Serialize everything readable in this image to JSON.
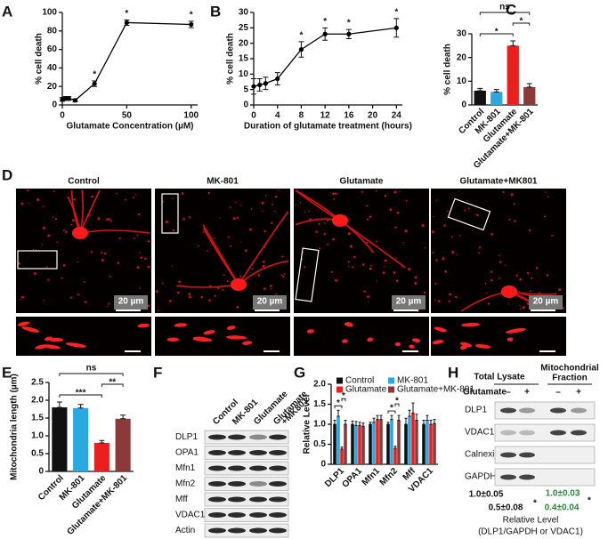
{
  "chart_data": [
    {
      "type": "line",
      "label": "A",
      "x_label": "Glutamate Concentration (µM)",
      "y_label": "% cell death",
      "x": [
        0,
        2.5,
        5,
        10,
        25,
        50,
        100
      ],
      "values": [
        6,
        7,
        7,
        5,
        23,
        89,
        87
      ],
      "errors": [
        2,
        2,
        2,
        1.5,
        3,
        3,
        3.5
      ],
      "significance": [
        null,
        null,
        null,
        null,
        "*",
        "*",
        "*"
      ],
      "color": "#000000",
      "xlim": [
        0,
        105
      ],
      "xticks": [
        0,
        50,
        100
      ],
      "ylim": [
        0,
        100
      ],
      "yticks": [
        0,
        20,
        40,
        60,
        80,
        100
      ]
    },
    {
      "type": "line",
      "label": "B",
      "x_label": "Duration of glutamate treatment (hours)",
      "y_label": "% cell death",
      "x": [
        0,
        1,
        2,
        4,
        8,
        12,
        16,
        24
      ],
      "values": [
        6,
        6.5,
        7,
        8.5,
        18,
        23,
        23,
        25
      ],
      "errors": [
        2.5,
        2,
        2,
        2,
        2.5,
        2,
        1.5,
        3
      ],
      "significance": [
        null,
        null,
        null,
        null,
        "*",
        "*",
        "*",
        "*"
      ],
      "color": "#000000",
      "xlim": [
        0,
        25
      ],
      "xticks": [
        0,
        4,
        8,
        12,
        16,
        20,
        24
      ],
      "ylim": [
        0,
        30
      ],
      "yticks": [
        0,
        5,
        10,
        15,
        20,
        25,
        30
      ]
    },
    {
      "type": "bar",
      "label": "C",
      "y_label": "% cell death",
      "categories": [
        "Control",
        "MK-801",
        "Glutamate",
        "Glutamate+MK-801"
      ],
      "values": [
        6,
        5.5,
        25,
        7.5
      ],
      "errors": [
        1,
        1,
        2,
        1.5
      ],
      "colors": [
        "#111111",
        "#29a9e0",
        "#e8211f",
        "#8b3a3a"
      ],
      "ylim": [
        0,
        30
      ],
      "yticks": [
        0,
        10,
        20,
        30
      ],
      "comparisons": [
        {
          "between": [
            "Control",
            "Glutamate"
          ],
          "text": "*"
        },
        {
          "between": [
            "Glutamate",
            "Glutamate+MK-801"
          ],
          "text": "*"
        },
        {
          "between": [
            "Control",
            "Glutamate+MK-801"
          ],
          "text": "ns"
        }
      ]
    },
    {
      "type": "bar",
      "label": "E",
      "y_label": "Mitochondria length (µm)",
      "categories": [
        "Control",
        "MK-801",
        "Glutamate",
        "Glutamate+MK-801"
      ],
      "values": [
        1.8,
        1.78,
        0.8,
        1.48
      ],
      "errors": [
        0.15,
        0.1,
        0.07,
        0.1
      ],
      "colors": [
        "#111111",
        "#29a9e0",
        "#e8211f",
        "#8b3a3a"
      ],
      "ylim": [
        0,
        2.5
      ],
      "yticks": [
        0,
        0.5,
        {
          "value": 1,
          "label": "1.0"
        },
        1.5,
        {
          "value": 2,
          "label": "2.0"
        },
        2.5
      ],
      "comparisons": [
        {
          "between": [
            "Control",
            "Glutamate"
          ],
          "text": "***"
        },
        {
          "between": [
            "Glutamate",
            "Glutamate+MK-801"
          ],
          "text": "**"
        },
        {
          "between": [
            "Control",
            "Glutamate+MK-801"
          ],
          "text": "ns"
        }
      ]
    },
    {
      "type": "grouped_bar",
      "label": "G",
      "y_label": "Relative Level",
      "legend": "top",
      "categories": [
        "DLP1",
        "OPA1",
        "Mfn1",
        "Mfn2",
        "Mff",
        "VDAC1"
      ],
      "series": [
        {
          "name": "Control",
          "color": "#111111",
          "values": [
            1,
            1,
            1,
            1,
            1,
            1
          ],
          "errors": [
            0.1,
            0.08,
            0.05,
            0.05,
            0.15,
            0.1
          ]
        },
        {
          "name": "MK-801",
          "color": "#29a9e0",
          "values": [
            1.2,
            0.97,
            1.05,
            1.12,
            1.2,
            1.1
          ],
          "errors": [
            0.15,
            0.1,
            0.1,
            0.1,
            0.15,
            0.12
          ]
        },
        {
          "name": "Glutamate",
          "color": "#e8211f",
          "values": [
            0.38,
            0.97,
            1.12,
            0.4,
            1.28,
            1.0
          ],
          "errors": [
            0.05,
            0.08,
            0.1,
            0.05,
            0.25,
            0.1
          ]
        },
        {
          "name": "Glutamate+MK-801",
          "color": "#8b3a3a",
          "values": [
            1.0,
            0.95,
            1.12,
            1.1,
            1.1,
            1.02
          ],
          "errors": [
            0.1,
            0.08,
            0.1,
            0.12,
            0.15,
            0.1
          ]
        }
      ],
      "ylim": [
        0,
        2
      ],
      "yticks": [
        0,
        0.5,
        {
          "value": 1,
          "label": "1.0"
        },
        1.5,
        {
          "value": 2,
          "label": "2.0"
        }
      ],
      "comparisons": [
        {
          "category": "DLP1",
          "between": [
            "Control",
            "Glutamate"
          ],
          "text": "*"
        },
        {
          "category": "DLP1",
          "between": [
            "Glutamate",
            "Glutamate+MK-801"
          ],
          "text": "*"
        },
        {
          "category": "Mfn2",
          "between": [
            "Control",
            "Glutamate"
          ],
          "text": "*"
        },
        {
          "category": "Mfn2",
          "between": [
            "Glutamate",
            "Glutamate+MK-801"
          ],
          "text": "*"
        }
      ]
    }
  ],
  "figure": {
    "panel_D": {
      "label": "D",
      "titles": [
        "Control",
        "MK-801",
        "Glutamate",
        "Glutamate+MK801"
      ],
      "scale_bars": [
        "20 µm",
        "20 µm",
        "20 µm",
        "20 µm"
      ]
    },
    "panel_F": {
      "label": "F",
      "columns": [
        [
          "Control"
        ],
        [
          "MK-801"
        ],
        [
          "Glutamate"
        ],
        [
          "Glutamate",
          "+MK801"
        ]
      ],
      "rows": [
        "DLP1",
        "OPA1",
        "Mfn1",
        "Mfn2",
        "Mff",
        "VDAC1",
        "Actin"
      ]
    },
    "panel_H": {
      "label": "H",
      "headers": [
        [
          "Total Lysate"
        ],
        [
          "Mitochondrial",
          "Fraction"
        ]
      ],
      "treatment": "Glutamate",
      "signs": [
        "–",
        "+",
        "–",
        "+"
      ],
      "rows": [
        "DLP1",
        "VDAC1",
        "Calnexin",
        "GAPDH"
      ],
      "total_levels": [
        "1.0±0.05",
        "0.5±0.08"
      ],
      "mito_levels": [
        "1.0±0.03",
        "0.4±0.04"
      ],
      "significance": [
        "*",
        "*"
      ],
      "caption": [
        "Relative Level",
        "(DLP1/GAPDH or VDAC1)"
      ]
    }
  }
}
